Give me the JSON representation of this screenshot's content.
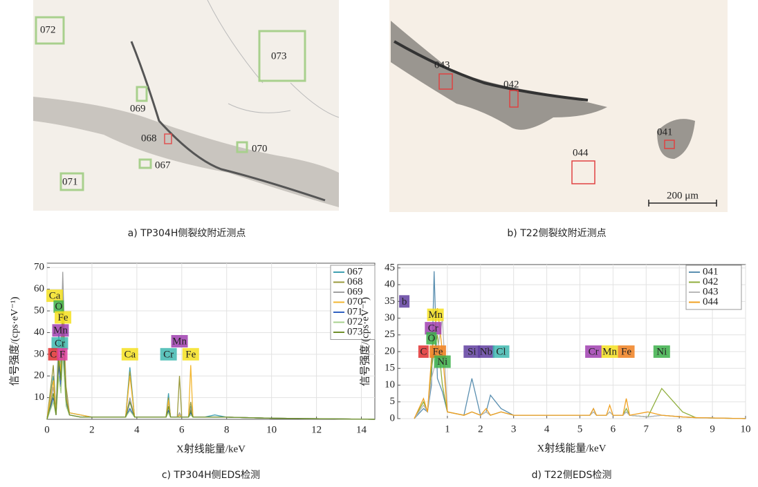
{
  "micrographs": [
    {
      "caption": "a) TP304H侧裂纹附近测点",
      "points": [
        "072",
        "073",
        "069",
        "068",
        "070",
        "067",
        "071"
      ]
    },
    {
      "caption": "b) T22侧裂纹附近测点",
      "points": [
        "043",
        "042",
        "041",
        "044"
      ],
      "scale_bar": "200 μm"
    }
  ],
  "chart_data": [
    {
      "type": "line",
      "caption": "c) TP304H侧EDS检测",
      "x_label": "X射线能量/keV",
      "y_label": "信号强度/(cps·eV⁻¹)",
      "xlim": [
        0,
        14.6
      ],
      "ylim": [
        0,
        72
      ],
      "xticks": [
        0,
        2,
        4,
        6,
        8,
        10,
        12,
        14
      ],
      "yticks": [
        10,
        20,
        30,
        40,
        50,
        60,
        70
      ],
      "grid": true,
      "x": [
        0,
        0.28,
        0.4,
        0.52,
        0.62,
        0.7,
        0.85,
        1.0,
        1.5,
        2.0,
        3.5,
        3.69,
        3.9,
        5.3,
        5.41,
        5.5,
        5.8,
        5.9,
        6.0,
        6.3,
        6.4,
        6.5,
        7.0,
        7.47,
        8.0,
        10,
        14.6
      ],
      "series": [
        {
          "name": "067",
          "color": "#3f9fb0",
          "values": [
            0,
            20,
            3,
            40,
            25,
            60,
            10,
            3,
            2,
            1,
            1,
            24,
            1,
            1,
            12,
            1,
            1,
            2,
            1,
            1,
            6,
            1,
            1,
            2,
            1,
            0.5,
            0
          ]
        },
        {
          "name": "068",
          "color": "#9a9a3c",
          "values": [
            0,
            25,
            3,
            30,
            20,
            50,
            15,
            3,
            2,
            1,
            1,
            22,
            1,
            1,
            10,
            1,
            1,
            20,
            1,
            1,
            8,
            1,
            1,
            1,
            1,
            0.5,
            0
          ]
        },
        {
          "name": "069",
          "color": "#a0a0a0",
          "values": [
            0,
            15,
            2,
            35,
            30,
            68,
            12,
            3,
            2,
            1,
            1,
            10,
            1,
            1,
            8,
            1,
            1,
            3,
            1,
            1,
            5,
            1,
            1,
            1,
            1,
            0.5,
            0
          ]
        },
        {
          "name": "070",
          "color": "#f2b630",
          "values": [
            0,
            18,
            2,
            30,
            22,
            55,
            10,
            3,
            2,
            1,
            1,
            20,
            1,
            1,
            9,
            1,
            1,
            2,
            1,
            1,
            25,
            1,
            1,
            1,
            1,
            0.5,
            0
          ]
        },
        {
          "name": "071",
          "color": "#3060c0",
          "values": [
            0,
            10,
            2,
            25,
            15,
            35,
            8,
            2,
            1,
            1,
            1,
            5,
            1,
            1,
            4,
            1,
            1,
            1,
            1,
            1,
            3,
            1,
            1,
            1,
            1,
            0.5,
            0
          ]
        },
        {
          "name": "072",
          "color": "#a8d08d",
          "values": [
            0,
            8,
            2,
            20,
            12,
            30,
            6,
            2,
            1,
            1,
            1,
            4,
            1,
            1,
            3,
            1,
            1,
            1,
            1,
            1,
            2,
            1,
            1,
            1,
            1,
            0.5,
            0
          ]
        },
        {
          "name": "073",
          "color": "#6f8f2a",
          "values": [
            0,
            12,
            2,
            28,
            18,
            45,
            9,
            2,
            1,
            1,
            1,
            8,
            1,
            1,
            6,
            1,
            1,
            1,
            1,
            1,
            4,
            1,
            1,
            1,
            1,
            0.5,
            0
          ]
        }
      ],
      "annotations": [
        {
          "label": "Ca",
          "x": 0.34,
          "y": 57,
          "color": "#f5e020"
        },
        {
          "label": "O",
          "x": 0.52,
          "y": 52,
          "color": "#3cb04a"
        },
        {
          "label": "Fe",
          "x": 0.71,
          "y": 47,
          "color": "#f5e020"
        },
        {
          "label": "Mn",
          "x": 0.6,
          "y": 41,
          "color": "#a040b0"
        },
        {
          "label": "Cr",
          "x": 0.57,
          "y": 35,
          "color": "#40b8b0"
        },
        {
          "label": "C",
          "x": 0.28,
          "y": 30,
          "color": "#e03030"
        },
        {
          "label": "F",
          "x": 0.68,
          "y": 30,
          "color": "#e040a0"
        },
        {
          "label": "Ca",
          "x": 3.69,
          "y": 30,
          "color": "#f5e020"
        },
        {
          "label": "Cr",
          "x": 5.41,
          "y": 30,
          "color": "#40b8b0"
        },
        {
          "label": "Mn",
          "x": 5.9,
          "y": 36,
          "color": "#a040b0"
        },
        {
          "label": "Fe",
          "x": 6.4,
          "y": 30,
          "color": "#f5e020"
        }
      ]
    },
    {
      "type": "line",
      "caption": "d) T22侧EDS检测",
      "x_label": "X射线能量/keV",
      "y_label": "信号强度/(cps·eV⁻¹)",
      "xlim": [
        -0.5,
        10
      ],
      "ylim": [
        0,
        46
      ],
      "xticks": [
        1,
        2,
        3,
        4,
        5,
        6,
        7,
        8,
        9,
        10
      ],
      "yticks": [
        0,
        5,
        10,
        15,
        20,
        25,
        30,
        35,
        40,
        45
      ],
      "grid": true,
      "x": [
        0,
        0.28,
        0.4,
        0.52,
        0.6,
        0.7,
        0.85,
        1.0,
        1.5,
        1.74,
        2.0,
        2.17,
        2.3,
        2.62,
        3.0,
        5.3,
        5.41,
        5.5,
        5.8,
        5.9,
        6.0,
        6.3,
        6.4,
        6.5,
        7.05,
        7.47,
        8.1,
        8.5,
        10
      ],
      "series": [
        {
          "name": "041",
          "color": "#5a8fb0",
          "values": [
            0,
            3,
            2,
            10,
            44,
            12,
            8,
            2,
            1,
            12,
            1,
            2,
            7,
            3,
            1,
            1,
            3,
            1,
            1,
            2,
            1,
            1,
            2,
            1,
            0.5,
            1,
            0.5,
            0.3,
            0
          ]
        },
        {
          "name": "042",
          "color": "#8fae3c",
          "values": [
            0,
            5,
            2,
            15,
            20,
            25,
            10,
            2,
            1,
            2,
            1,
            2,
            1,
            2,
            1,
            1,
            2,
            1,
            1,
            2,
            1,
            1,
            3,
            1,
            0.5,
            9,
            2,
            0.3,
            0
          ]
        },
        {
          "name": "043",
          "color": "#b8b8b8",
          "values": [
            0,
            4,
            2,
            12,
            15,
            20,
            30,
            2,
            1,
            2,
            1,
            2,
            1,
            2,
            1,
            1,
            2,
            1,
            1,
            2,
            1,
            1,
            2,
            1,
            0.5,
            1,
            0.5,
            0.3,
            0
          ]
        },
        {
          "name": "044",
          "color": "#f0a020",
          "values": [
            0,
            6,
            2,
            18,
            25,
            33,
            20,
            2,
            1,
            2,
            1,
            3,
            1,
            2,
            1,
            1,
            3,
            1,
            1,
            4,
            1,
            1,
            6,
            1,
            2,
            1,
            0.5,
            0.3,
            0
          ]
        }
      ],
      "annotations": [
        {
          "label": "b",
          "x": -0.3,
          "y": 35,
          "color": "#6040a0"
        },
        {
          "label": "Mn",
          "x": 0.64,
          "y": 31,
          "color": "#f5e020"
        },
        {
          "label": "Cr",
          "x": 0.57,
          "y": 27,
          "color": "#a040b0"
        },
        {
          "label": "O",
          "x": 0.52,
          "y": 24,
          "color": "#3cb04a"
        },
        {
          "label": "C",
          "x": 0.28,
          "y": 20,
          "color": "#e03030"
        },
        {
          "label": "Fe",
          "x": 0.71,
          "y": 20,
          "color": "#f08020"
        },
        {
          "label": "Ni",
          "x": 0.85,
          "y": 17,
          "color": "#3cb04a"
        },
        {
          "label": "Si",
          "x": 1.74,
          "y": 20,
          "color": "#6040a0"
        },
        {
          "label": "Nb",
          "x": 2.17,
          "y": 20,
          "color": "#6040a0"
        },
        {
          "label": "Cl",
          "x": 2.62,
          "y": 20,
          "color": "#40b8b0"
        },
        {
          "label": "Cr",
          "x": 5.41,
          "y": 20,
          "color": "#a040b0"
        },
        {
          "label": "Mn",
          "x": 5.9,
          "y": 20,
          "color": "#f5e020"
        },
        {
          "label": "Fe",
          "x": 6.4,
          "y": 20,
          "color": "#f08020"
        },
        {
          "label": "Ni",
          "x": 7.47,
          "y": 20,
          "color": "#3cb04a"
        }
      ]
    }
  ]
}
